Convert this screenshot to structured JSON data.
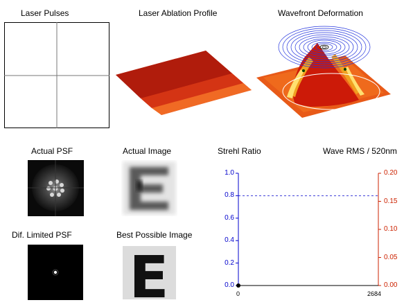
{
  "titles": {
    "laser_pulses": "Laser Pulses",
    "ablation_profile": "Laser Ablation Profile",
    "wavefront": "Wavefront Deformation",
    "actual_psf": "Actual PSF",
    "actual_image": "Actual  Image",
    "dif_psf": "Dif. Limited PSF",
    "best_image": "Best Possible Image",
    "image_letter": "E"
  },
  "chart_data": {
    "type": "line",
    "title": "Strehl Ratio",
    "right_title": "Wave  RMS / 520nm",
    "x_ticks": [
      "0",
      "2684"
    ],
    "xlim": [
      0,
      2684
    ],
    "ylim_left": [
      0,
      1.0
    ],
    "ylim_right": [
      0,
      0.2
    ],
    "y_ticks_left": [
      "1.0",
      "0.8",
      "0.6",
      "0.4",
      "0.2",
      "0.0"
    ],
    "y_ticks_right": [
      "0.20",
      "0.15",
      "0.10",
      "0.05",
      "0.00"
    ],
    "reference_line": {
      "axis": "left",
      "y": 0.8,
      "style": "dashed"
    },
    "series": [
      {
        "axis": "left",
        "x": [
          0
        ],
        "y": [
          0.0
        ]
      }
    ],
    "colors": {
      "left_axis": "#0000cc",
      "right_axis": "#cc2200",
      "point": "#000000"
    }
  }
}
